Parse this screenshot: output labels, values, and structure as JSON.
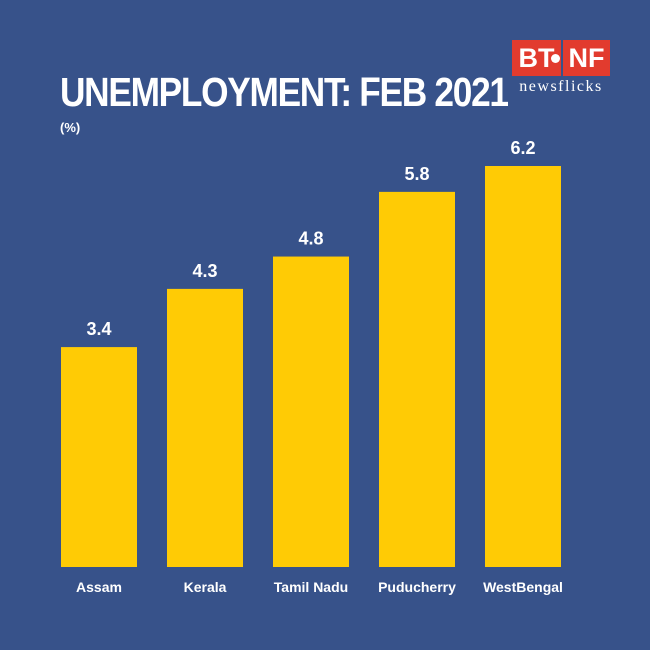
{
  "header": {
    "title": "UNEMPLOYMENT: FEB 2021",
    "unit": "(%)"
  },
  "logo": {
    "mark_left": "BT",
    "mark_right": "NF",
    "subtitle": "newsflicks",
    "color": "#e23b2e"
  },
  "colors": {
    "background": "#37528a",
    "bar": "#ffcb05",
    "text": "#ffffff"
  },
  "chart_data": {
    "type": "bar",
    "title": "UNEMPLOYMENT: FEB 2021",
    "ylabel": "(%)",
    "categories": [
      "Assam",
      "Kerala",
      "Tamil Nadu",
      "Puducherry",
      "WestBengal"
    ],
    "values": [
      3.4,
      4.3,
      4.8,
      5.8,
      6.2
    ],
    "data_labels": [
      "3.4",
      "4.3",
      "4.8",
      "5.8",
      "6.2"
    ],
    "ylim": [
      0,
      6.2
    ],
    "grid": false,
    "legend": "none"
  }
}
